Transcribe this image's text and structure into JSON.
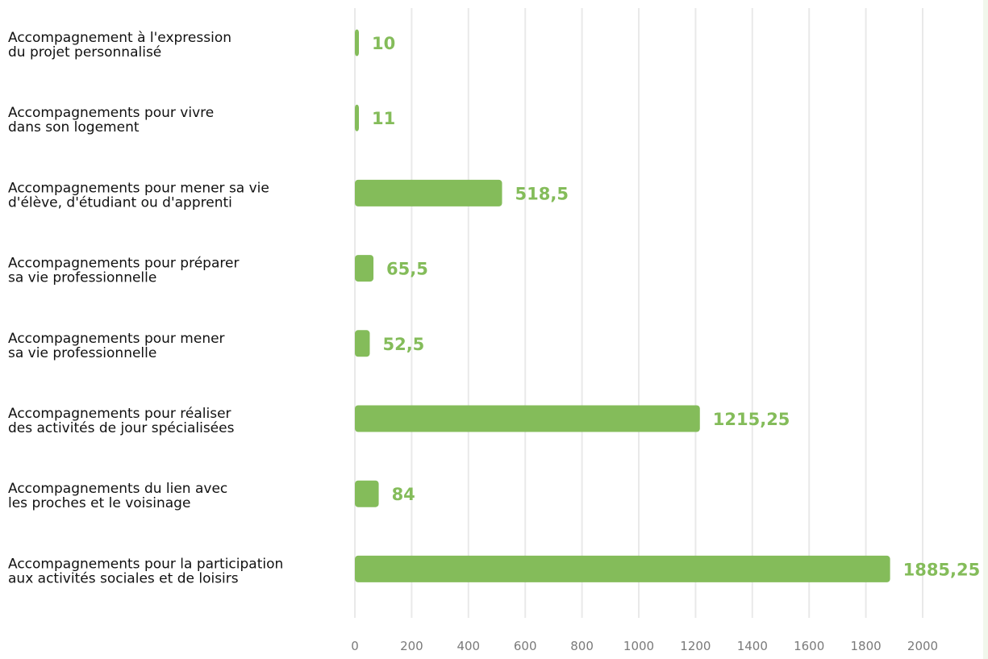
{
  "chart_data": {
    "type": "bar",
    "orientation": "horizontal",
    "title": "",
    "xlabel": "",
    "ylabel": "",
    "categories": [
      [
        "Accompagnement à l'expression",
        "du projet personnalisé"
      ],
      [
        "Accompagnements pour vivre",
        "dans son logement"
      ],
      [
        "Accompagnements pour  mener sa vie",
        "d'élève, d'étudiant ou d'apprenti"
      ],
      [
        "Accompagnements pour préparer",
        "sa vie professionnelle"
      ],
      [
        "Accompagnements pour mener",
        "sa vie professionnelle"
      ],
      [
        "Accompagnements pour réaliser",
        "des activités de jour spécialisées"
      ],
      [
        "Accompagnements du lien avec",
        "les proches et le voisinage"
      ],
      [
        "Accompagnements pour la participation",
        "aux activités sociales et de loisirs"
      ]
    ],
    "values": [
      10,
      11,
      518.5,
      65.5,
      52.5,
      1215.25,
      84,
      1885.25
    ],
    "value_labels": [
      "10",
      "11",
      "518,5",
      "65,5",
      "52,5",
      "1215,25",
      "84",
      "1885,25"
    ],
    "xlim": [
      0,
      2000
    ],
    "xticks": [
      0,
      200,
      400,
      600,
      800,
      1000,
      1200,
      1400,
      1600,
      1800,
      2000
    ],
    "xtick_labels": [
      "0",
      "200",
      "400",
      "600",
      "800",
      "1000",
      "1200",
      "1400",
      "1600",
      "1800",
      "2000"
    ],
    "grid": true,
    "legend": "none",
    "colors": {
      "bar": "#84bc5a",
      "value_label": "#84bc5a",
      "grid": "#e9e9e9",
      "edge_strip": "#f1f7ec"
    }
  }
}
